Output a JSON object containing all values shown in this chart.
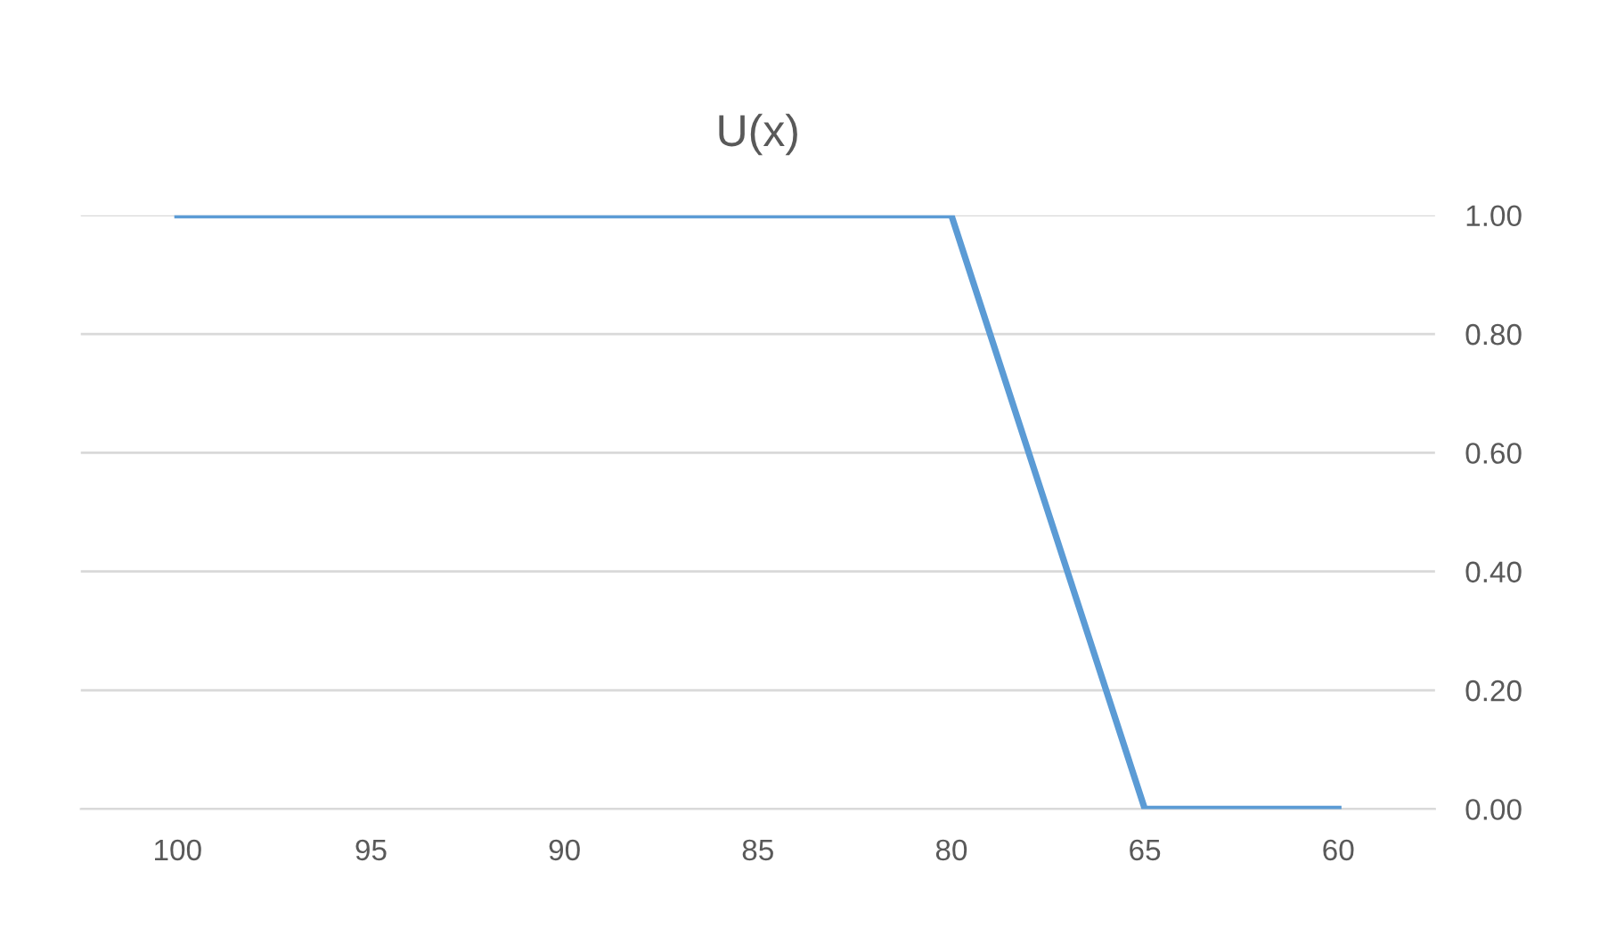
{
  "chart_data": {
    "type": "line",
    "title": "U(x)",
    "categories": [
      "100",
      "95",
      "90",
      "85",
      "80",
      "65",
      "60"
    ],
    "series": [
      {
        "color": "#5b9bd5",
        "values": [
          1,
          1,
          1,
          1,
          1,
          0,
          0
        ]
      }
    ],
    "ylim": [
      0,
      1
    ],
    "yticks": [
      {
        "value": 0,
        "label": "0.00"
      },
      {
        "value": 0.2,
        "label": "0.20"
      },
      {
        "value": 0.4,
        "label": "0.40"
      },
      {
        "value": 0.6,
        "label": "0.60"
      },
      {
        "value": 0.8,
        "label": "0.80"
      },
      {
        "value": 1,
        "label": "1.00"
      }
    ],
    "grid": "y",
    "legend": false,
    "marker": "none",
    "line_style": "solid"
  }
}
